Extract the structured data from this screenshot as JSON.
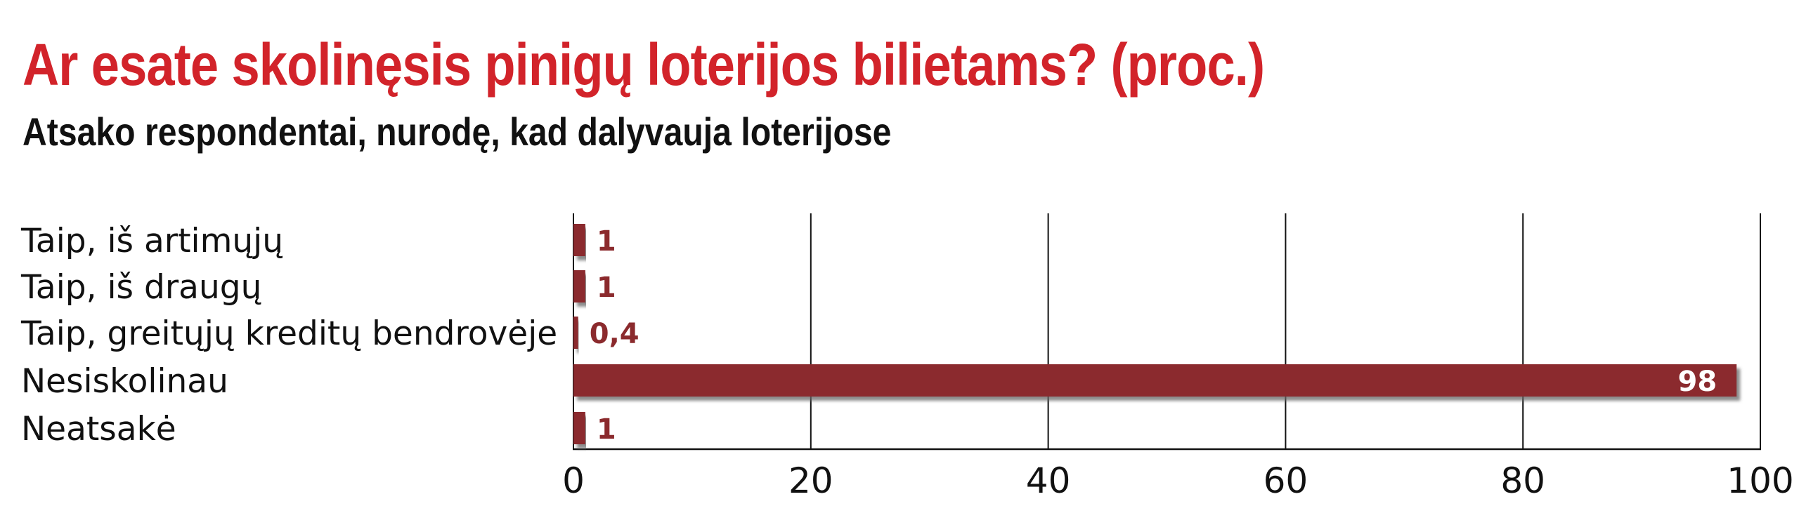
{
  "title": "Ar esate skolinęsis pinigų loterijos bilietams? (proc.)",
  "subtitle": "Atsako respondentai, nurodę, kad dalyvauja loterijose",
  "colors": {
    "title": "#d2232a",
    "bar": "#8b2a2d",
    "bar_label": "#8b2a2d",
    "bar_label_inside": "#ffffff",
    "shadow": "#7a7a7a"
  },
  "chart_data": {
    "type": "bar",
    "orientation": "horizontal",
    "categories": [
      "Taip, iš artimųjų",
      "Taip, iš draugų",
      "Taip, greitųjų kreditų bendrovėje",
      "Nesiskolinau",
      "Neatsakė"
    ],
    "values": [
      1,
      1,
      0.4,
      98,
      1
    ],
    "value_labels": [
      "1",
      "1",
      "0,4",
      "98",
      "1"
    ],
    "xlim": [
      0,
      100
    ],
    "xticks": [
      0,
      20,
      40,
      60,
      80,
      100
    ],
    "xtick_labels": [
      "0",
      "20",
      "40",
      "60",
      "80",
      "100"
    ],
    "grid": true
  }
}
